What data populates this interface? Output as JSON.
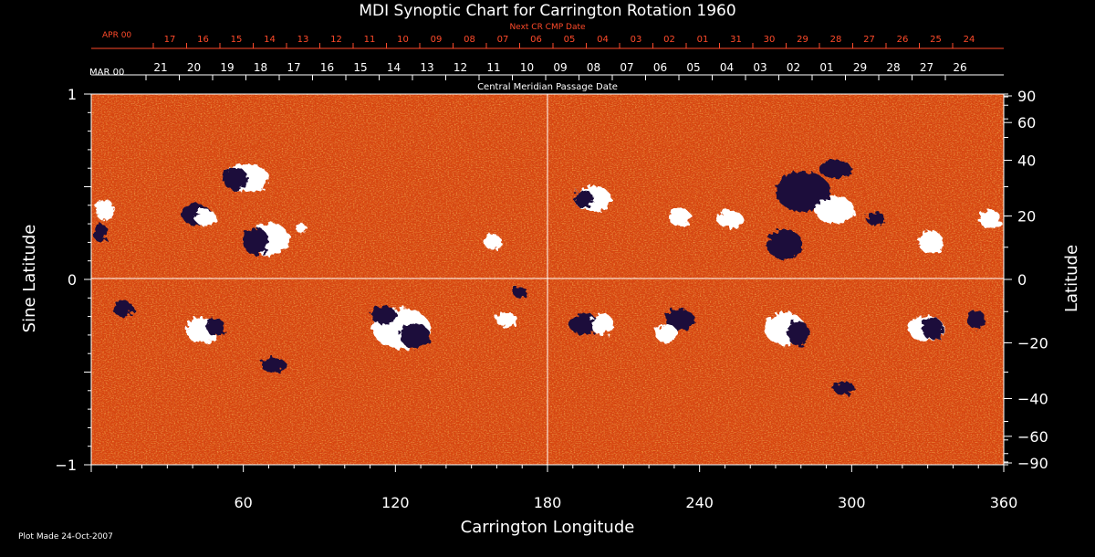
{
  "chart_data": {
    "type": "heatmap",
    "title": "MDI Synoptic Chart for Carrington Rotation 1960",
    "xlabel": "Carrington Longitude",
    "ylabel_left": "Sine Latitude",
    "ylabel_right": "Latitude",
    "xlim": [
      0,
      360
    ],
    "ylim": [
      -1,
      1
    ],
    "x_ticks": [
      60,
      120,
      180,
      240,
      300,
      360
    ],
    "y_ticks_left": [
      {
        "value": 1,
        "label": "1"
      },
      {
        "value": 0,
        "label": "0"
      },
      {
        "value": -1,
        "label": "−1"
      }
    ],
    "y_ticks_right": [
      {
        "lat": 90,
        "label": "90"
      },
      {
        "lat": 60,
        "label": "60"
      },
      {
        "lat": 40,
        "label": "40"
      },
      {
        "lat": 20,
        "label": "20"
      },
      {
        "lat": 0,
        "label": "0"
      },
      {
        "lat": -20,
        "label": "−20"
      },
      {
        "lat": -40,
        "label": "−40"
      },
      {
        "lat": -60,
        "label": "−60"
      },
      {
        "lat": -90,
        "label": "−90"
      }
    ],
    "top_axis": {
      "label": "Central Meridian Passage Date",
      "start_label": "MAR 00",
      "dates": [
        "21",
        "20",
        "19",
        "18",
        "17",
        "16",
        "15",
        "14",
        "13",
        "12",
        "11",
        "10",
        "09",
        "08",
        "07",
        "06",
        "05",
        "04",
        "03",
        "02",
        "01",
        "29",
        "28",
        "27",
        "26"
      ]
    },
    "next_axis": {
      "label": "Next CR CMP Date",
      "start_label": "APR 00",
      "dates": [
        "17",
        "16",
        "15",
        "14",
        "13",
        "12",
        "11",
        "10",
        "09",
        "08",
        "07",
        "06",
        "05",
        "04",
        "03",
        "02",
        "01",
        "31",
        "30",
        "29",
        "28",
        "27",
        "26",
        "25",
        "24"
      ]
    },
    "colors": {
      "background": "#000000",
      "field_base": "#d8470f",
      "negative": "#1a0b3a",
      "positive": "#ffffff",
      "top_axis": "#ff4a2a",
      "axis": "#ffffff"
    }
  },
  "footer": {
    "plot_made": "Plot Made 24-Oct-2007"
  }
}
